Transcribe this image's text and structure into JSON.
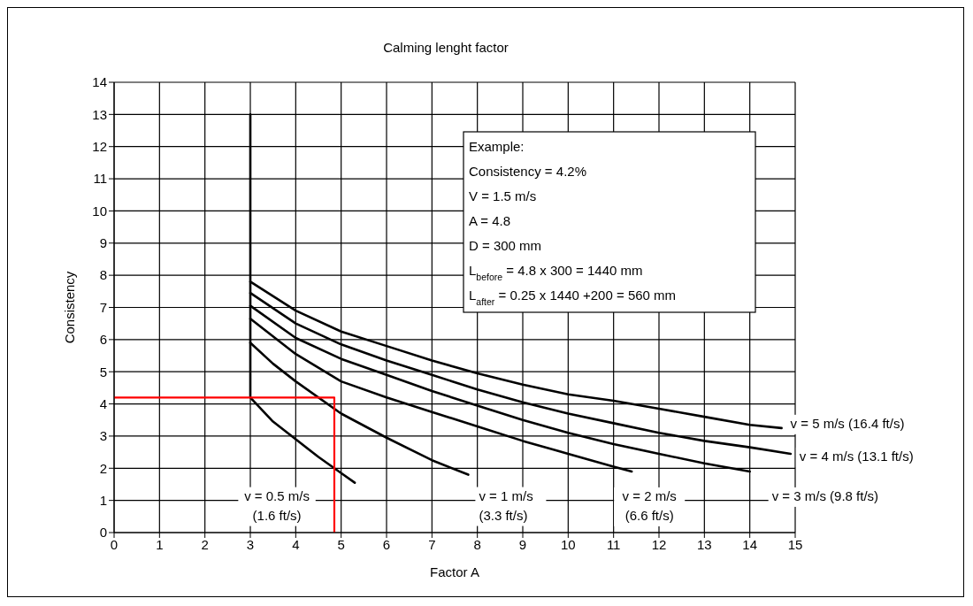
{
  "chart_data": {
    "type": "line",
    "title": "Calming lenght factor",
    "xlabel": "Factor A",
    "ylabel": "Consistency",
    "xlim": [
      0,
      15
    ],
    "xticks": [
      0,
      1,
      2,
      3,
      4,
      5,
      6,
      7,
      8,
      9,
      10,
      11,
      12,
      13,
      14,
      15
    ],
    "ylim": [
      0,
      14
    ],
    "yticks": [
      0,
      1,
      2,
      3,
      4,
      5,
      6,
      7,
      8,
      9,
      10,
      11,
      12,
      13,
      14
    ],
    "grid": true,
    "marker": "none",
    "line_style": "solid",
    "series": [
      {
        "name": "v = 0.5 m/s (1.6 ft/s)",
        "color": "#000000",
        "x": [
          3,
          3.5,
          4,
          4.5,
          5,
          5.3
        ],
        "values": [
          4.2,
          3.45,
          2.9,
          2.35,
          1.85,
          1.55
        ]
      },
      {
        "name": "v = 1 m/s (3.3 ft/s)",
        "color": "#000000",
        "x": [
          3,
          3.5,
          4,
          5,
          6,
          7,
          7.8
        ],
        "values": [
          5.9,
          5.25,
          4.7,
          3.7,
          2.95,
          2.25,
          1.8
        ]
      },
      {
        "name": "v = 2 m/s (6.6 ft/s)",
        "color": "#000000",
        "x": [
          3,
          4,
          5,
          6,
          7,
          8,
          9,
          10,
          11,
          11.4
        ],
        "values": [
          6.65,
          5.55,
          4.7,
          4.2,
          3.75,
          3.3,
          2.85,
          2.45,
          2.05,
          1.9
        ]
      },
      {
        "name": "v = 3 m/s (9.8 ft/s)",
        "color": "#000000",
        "x": [
          3,
          4,
          5,
          6,
          7,
          8,
          9,
          10,
          11,
          12,
          13,
          14
        ],
        "values": [
          7.05,
          6.05,
          5.4,
          4.9,
          4.4,
          3.95,
          3.5,
          3.1,
          2.75,
          2.45,
          2.15,
          1.9
        ]
      },
      {
        "name": "v = 4 m/s (13.1 ft/s)",
        "color": "#000000",
        "x": [
          3,
          4,
          5,
          6,
          7,
          8,
          9,
          10,
          11,
          12,
          13,
          14,
          14.9
        ],
        "values": [
          7.45,
          6.5,
          5.85,
          5.35,
          4.9,
          4.45,
          4.05,
          3.7,
          3.4,
          3.1,
          2.85,
          2.65,
          2.45
        ]
      },
      {
        "name": "v = 5 m/s (16.4 ft/s)",
        "color": "#000000",
        "x": [
          3,
          4,
          5,
          6,
          7,
          8,
          9,
          10,
          11,
          12,
          13,
          14,
          14.7
        ],
        "values": [
          7.8,
          6.9,
          6.25,
          5.8,
          5.35,
          4.95,
          4.6,
          4.3,
          4.1,
          3.85,
          3.6,
          3.35,
          3.25
        ]
      },
      {
        "color": "#000000",
        "x": [
          3,
          3
        ],
        "values": [
          4.2,
          13
        ]
      },
      {
        "color": "#ff0000",
        "x": [
          0,
          4.85,
          4.85
        ],
        "values": [
          4.2,
          4.2,
          0
        ]
      }
    ],
    "annotations": [
      "Example:",
      "Consistency  = 4.2%",
      "V = 1.5 m/s",
      "A = 4.8",
      "D = 300 mm",
      "L$_{before}$ = 4.8 x 300 = 1440 mm",
      "L$_{after}$ = 0.25 x 1440 +200 = 560 mm"
    ]
  }
}
